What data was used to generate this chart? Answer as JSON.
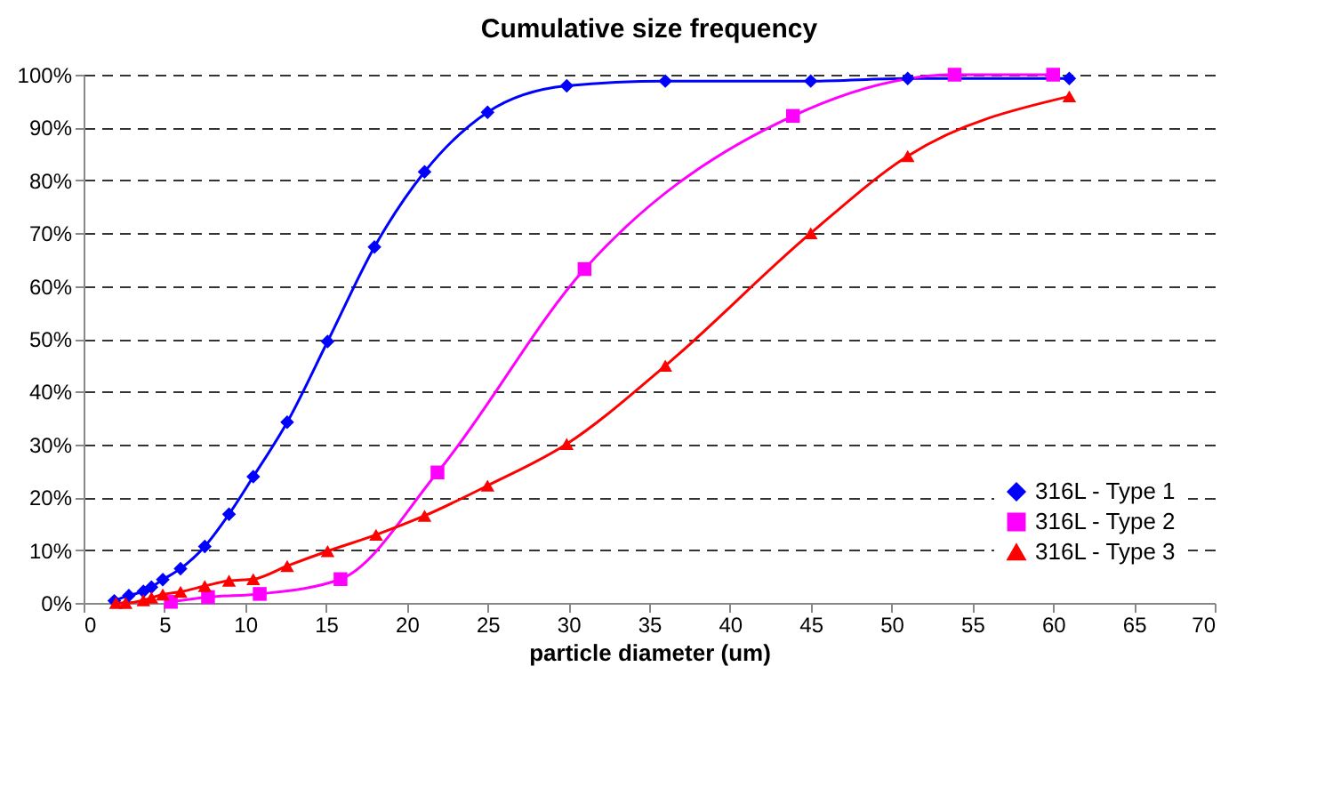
{
  "chart_data": {
    "type": "line",
    "title": "Cumulative size frequency",
    "xlabel": "particle diameter (um)",
    "xlim": [
      0,
      70
    ],
    "xticks": [
      0,
      5,
      10,
      15,
      20,
      25,
      30,
      35,
      40,
      45,
      50,
      55,
      60,
      65,
      70
    ],
    "ylim": [
      0,
      100
    ],
    "yticks": [
      {
        "value": 0,
        "label": "0%"
      },
      {
        "value": 10,
        "label": "10%"
      },
      {
        "value": 20,
        "label": "20%"
      },
      {
        "value": 30,
        "label": "30%"
      },
      {
        "value": 40,
        "label": "40%"
      },
      {
        "value": 50,
        "label": "50%"
      },
      {
        "value": 60,
        "label": "60%"
      },
      {
        "value": 70,
        "label": "70%"
      },
      {
        "value": 80,
        "label": "80%"
      },
      {
        "value": 90,
        "label": "90%"
      },
      {
        "value": 100,
        "label": "100%"
      }
    ],
    "grid": "y",
    "legend": "bottom right",
    "line_style": "solid",
    "series": [
      {
        "name": "316L - Type 1",
        "color": "#0000ff",
        "marker": "diamond",
        "x": [
          1.9,
          2.8,
          3.7,
          4.2,
          4.9,
          6.0,
          7.5,
          9.0,
          10.5,
          12.6,
          15.1,
          18.0,
          21.1,
          25.0,
          29.9,
          36.0,
          45.0,
          51.0,
          61.0
        ],
        "values": [
          0.4,
          1.4,
          2.2,
          3.0,
          4.4,
          6.5,
          10.7,
          16.8,
          23.9,
          34.2,
          49.5,
          67.4,
          81.6,
          92.9,
          97.9,
          98.8,
          98.8,
          99.3,
          99.3
        ]
      },
      {
        "name": "316L - Type 2",
        "color": "#ff00ff",
        "marker": "square",
        "x": [
          5.4,
          7.7,
          10.9,
          15.9,
          21.9,
          31.0,
          43.9,
          53.9,
          60.0
        ],
        "values": [
          0.2,
          1.1,
          1.7,
          4.5,
          24.7,
          63.2,
          92.2,
          100,
          100
        ]
      },
      {
        "name": "316L - Type 3",
        "color": "#ff0000",
        "marker": "triangle",
        "x": [
          2.0,
          2.6,
          3.7,
          4.2,
          4.9,
          6.0,
          7.5,
          9.0,
          10.5,
          12.6,
          15.1,
          18.1,
          21.1,
          25.0,
          29.9,
          36.0,
          45.0,
          51.0,
          61.0
        ],
        "values": [
          0,
          0,
          0.5,
          1.0,
          1.6,
          2.1,
          3.2,
          4.2,
          4.5,
          7.0,
          9.8,
          12.9,
          16.5,
          22.2,
          30.1,
          44.9,
          70.0,
          84.6,
          95.9
        ]
      }
    ]
  }
}
